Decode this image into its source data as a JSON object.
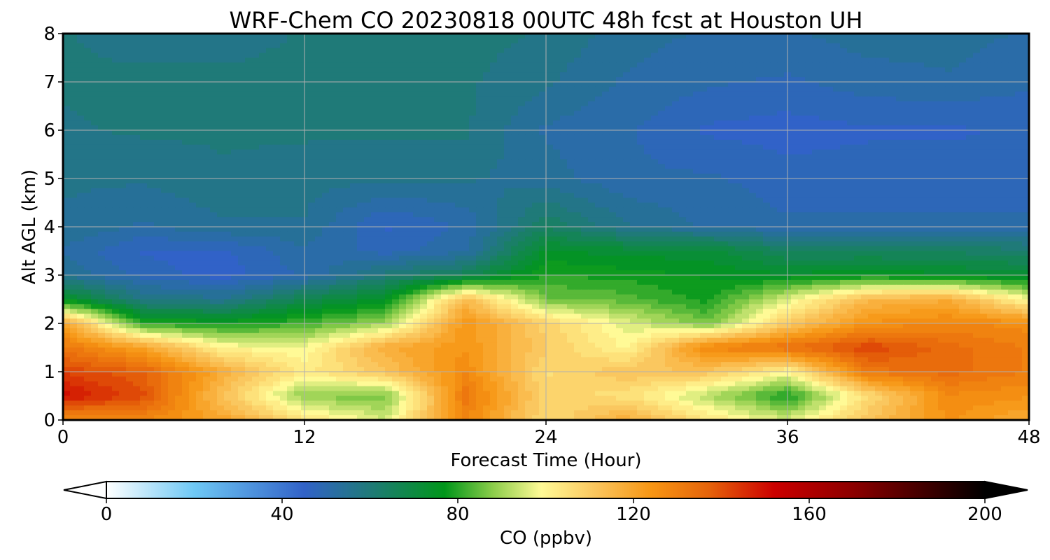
{
  "chart_data": {
    "type": "heatmap",
    "title": "WRF-Chem CO  20230818 00UTC 48h fcst at Houston UH",
    "xlabel": "Forecast Time (Hour)",
    "ylabel": "Alt AGL (km)",
    "xlim": [
      0,
      48
    ],
    "ylim": [
      0,
      8
    ],
    "xticks": [
      0,
      12,
      24,
      36,
      48
    ],
    "yticks": [
      0,
      1,
      2,
      3,
      4,
      5,
      6,
      7,
      8
    ],
    "grid": true,
    "colorbar": {
      "label": "CO  (ppbv)",
      "min": 0,
      "max": 200,
      "ticks": [
        0,
        40,
        80,
        120,
        160,
        200
      ],
      "extend": "both",
      "colormap": [
        {
          "v": 0,
          "color": "#ffffff"
        },
        {
          "v": 20,
          "color": "#6ec8f5"
        },
        {
          "v": 45,
          "color": "#3162c8"
        },
        {
          "v": 60,
          "color": "#1f7a78"
        },
        {
          "v": 77,
          "color": "#00961a"
        },
        {
          "v": 88,
          "color": "#8ccd4a"
        },
        {
          "v": 99,
          "color": "#fffa96"
        },
        {
          "v": 112,
          "color": "#fac35a"
        },
        {
          "v": 124,
          "color": "#f79614"
        },
        {
          "v": 137,
          "color": "#e6640a"
        },
        {
          "v": 152,
          "color": "#cc0000"
        },
        {
          "v": 170,
          "color": "#8c0000"
        },
        {
          "v": 200,
          "color": "#000000"
        }
      ]
    },
    "x": [
      0,
      4,
      8,
      12,
      16,
      20,
      24,
      28,
      32,
      36,
      40,
      44,
      48
    ],
    "y": [
      0,
      0.5,
      1,
      1.5,
      2,
      2.5,
      3,
      3.5,
      4,
      5,
      6,
      7,
      8
    ],
    "z": [
      [
        125,
        128,
        120,
        105,
        95,
        128,
        106,
        118,
        104,
        95,
        112,
        125,
        118
      ],
      [
        150,
        140,
        112,
        88,
        86,
        132,
        108,
        105,
        92,
        78,
        106,
        127,
        125
      ],
      [
        142,
        137,
        118,
        102,
        112,
        127,
        106,
        112,
        112,
        100,
        132,
        135,
        130
      ],
      [
        132,
        120,
        100,
        98,
        118,
        124,
        110,
        100,
        128,
        134,
        142,
        135,
        130
      ],
      [
        120,
        80,
        78,
        82,
        90,
        124,
        108,
        96,
        86,
        110,
        125,
        128,
        126
      ],
      [
        75,
        58,
        56,
        68,
        74,
        114,
        86,
        84,
        78,
        96,
        115,
        118,
        98
      ],
      [
        55,
        48,
        45,
        50,
        60,
        66,
        80,
        78,
        76,
        74,
        76,
        74,
        72
      ],
      [
        52,
        46,
        46,
        52,
        48,
        52,
        74,
        72,
        72,
        64,
        64,
        64,
        62
      ],
      [
        55,
        52,
        55,
        55,
        46,
        50,
        64,
        56,
        52,
        50,
        50,
        50,
        50
      ],
      [
        56,
        56,
        58,
        57,
        56,
        56,
        54,
        50,
        50,
        48,
        48,
        48,
        48
      ],
      [
        58,
        59,
        59,
        59,
        59,
        59,
        52,
        50,
        46,
        45,
        46,
        46,
        47
      ],
      [
        59,
        60,
        60,
        60,
        60,
        59,
        56,
        52,
        50,
        49,
        51,
        52,
        50
      ],
      [
        59,
        56,
        56,
        59,
        60,
        60,
        58,
        54,
        52,
        52,
        54,
        54,
        52
      ]
    ]
  }
}
